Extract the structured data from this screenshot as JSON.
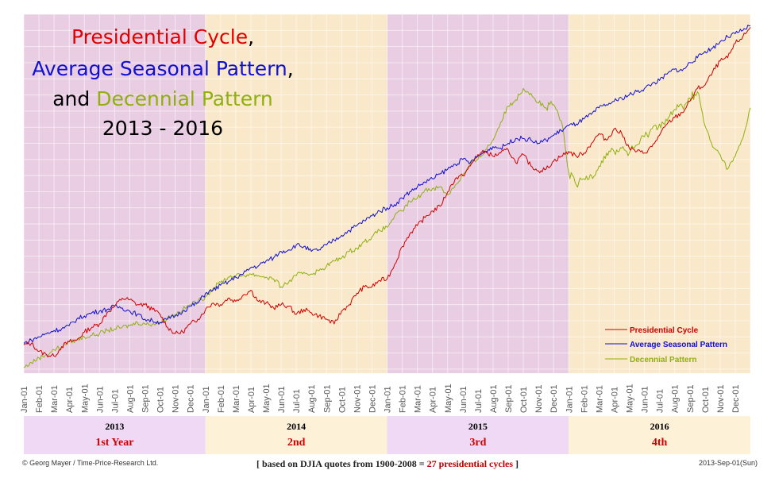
{
  "chart_data": {
    "type": "line",
    "title_lines": [
      [
        {
          "text": "Presidential ",
          "color": "#e00000"
        },
        {
          "text": "Cycle",
          "color": "#e00000"
        },
        {
          "text": ",",
          "color": "#000000"
        }
      ],
      [
        {
          "text": "Average Seasonal Pattern",
          "color": "#1010d0"
        },
        {
          "text": ",",
          "color": "#000000"
        }
      ],
      [
        {
          "text": "and ",
          "color": "#000000"
        },
        {
          "text": "Decennial Pattern",
          "color": "#90b010"
        }
      ],
      [
        {
          "text": "2013 - 2016",
          "color": "#000000"
        }
      ]
    ],
    "month_labels": [
      "Jan-01",
      "Feb-01",
      "Mar-01",
      "Apr-01",
      "May-01",
      "Jun-01",
      "Jul-01",
      "Aug-01",
      "Sep-01",
      "Oct-01",
      "Nov-01",
      "Dec-01"
    ],
    "years": [
      {
        "year": "2013",
        "label": "1st Year"
      },
      {
        "year": "2014",
        "label": "2nd"
      },
      {
        "year": "2015",
        "label": "3rd"
      },
      {
        "year": "2016",
        "label": "4th"
      }
    ],
    "x_unit": "months since Jan-01 2013",
    "series": [
      {
        "name": "Presidential Cycle",
        "color": "#d00000",
        "x": [
          0,
          0.5,
          1,
          1.5,
          2,
          2.5,
          3,
          3.5,
          4,
          4.5,
          5,
          5.5,
          6,
          6.5,
          7,
          7.5,
          8,
          8.5,
          9,
          9.5,
          10,
          10.5,
          11,
          11.5,
          12,
          12.5,
          13,
          13.5,
          14,
          14.5,
          15,
          15.5,
          16,
          16.5,
          17,
          17.5,
          18,
          18.5,
          19,
          19.5,
          20,
          20.5,
          21,
          21.5,
          22,
          22.5,
          23,
          23.5,
          24,
          24.5,
          25,
          25.5,
          26,
          26.5,
          27,
          27.5,
          28,
          28.5,
          29,
          29.5,
          30,
          30.5,
          31,
          31.5,
          32,
          32.5,
          33,
          33.5,
          34,
          34.5,
          35,
          35.5,
          36,
          36.5,
          37,
          37.5,
          38,
          38.5,
          39,
          39.5,
          40,
          40.5,
          41,
          41.5,
          42,
          42.5,
          43,
          43.5,
          44,
          44.5,
          45,
          45.5,
          46,
          46.5,
          47,
          47.5,
          48
        ],
        "y": [
          3.0,
          3.2,
          2.2,
          1.8,
          1.6,
          2.8,
          3.4,
          3.6,
          4.6,
          5.2,
          5.6,
          7.0,
          7.8,
          8.8,
          8.6,
          8.0,
          8.0,
          7.4,
          6.8,
          5.2,
          4.4,
          4.6,
          5.6,
          6.2,
          7.4,
          8.2,
          8.0,
          8.8,
          8.4,
          9.2,
          9.8,
          8.4,
          8.2,
          7.6,
          8.0,
          7.8,
          6.8,
          7.4,
          7.0,
          6.6,
          6.2,
          5.6,
          7.2,
          8.0,
          9.4,
          10.2,
          10.2,
          11.0,
          11.2,
          13.0,
          15.2,
          16.8,
          17.8,
          18.8,
          19.6,
          20.2,
          22.0,
          23.6,
          24.0,
          25.2,
          26.6,
          27.0,
          26.4,
          26.8,
          27.2,
          25.6,
          26.6,
          25.2,
          24.6,
          24.8,
          25.8,
          26.4,
          27.0,
          26.4,
          26.8,
          28.0,
          29.2,
          28.4,
          29.8,
          29.2,
          27.4,
          27.0,
          26.8,
          27.6,
          29.0,
          30.4,
          31.2,
          31.8,
          33.2,
          34.8,
          35.2,
          36.8,
          38.2,
          38.6,
          40.4,
          41.2,
          42.4
        ]
      },
      {
        "name": "Average Seasonal Pattern",
        "color": "#1010d0",
        "x": [
          0,
          0.5,
          1,
          1.5,
          2,
          2.5,
          3,
          3.5,
          4,
          4.5,
          5,
          5.5,
          6,
          6.5,
          7,
          7.5,
          8,
          8.5,
          9,
          9.5,
          10,
          10.5,
          11,
          11.5,
          12,
          12.5,
          13,
          13.5,
          14,
          14.5,
          15,
          15.5,
          16,
          16.5,
          17,
          17.5,
          18,
          18.5,
          19,
          19.5,
          20,
          20.5,
          21,
          21.5,
          22,
          22.5,
          23,
          23.5,
          24,
          24.5,
          25,
          25.5,
          26,
          26.5,
          27,
          27.5,
          28,
          28.5,
          29,
          29.5,
          30,
          30.5,
          31,
          31.5,
          32,
          32.5,
          33,
          33.5,
          34,
          34.5,
          35,
          35.5,
          36,
          36.5,
          37,
          37.5,
          38,
          38.5,
          39,
          39.5,
          40,
          40.5,
          41,
          41.5,
          42,
          42.5,
          43,
          43.5,
          44,
          44.5,
          45,
          45.5,
          46,
          46.5,
          47,
          47.5,
          48
        ],
        "y": [
          3.2,
          3.6,
          4.0,
          4.4,
          4.8,
          5.0,
          5.4,
          6.2,
          6.6,
          7.0,
          7.2,
          7.4,
          7.8,
          7.6,
          7.2,
          6.8,
          6.2,
          6.0,
          5.8,
          6.2,
          6.6,
          7.2,
          7.8,
          8.2,
          9.4,
          9.8,
          10.4,
          10.8,
          11.4,
          11.8,
          12.6,
          12.8,
          13.4,
          13.8,
          14.6,
          14.8,
          15.4,
          15.2,
          14.6,
          14.8,
          15.4,
          16.0,
          16.6,
          17.2,
          17.8,
          18.4,
          19.0,
          19.6,
          20.0,
          20.4,
          21.2,
          22.0,
          22.6,
          23.2,
          23.6,
          24.2,
          24.8,
          25.4,
          26.0,
          25.6,
          26.4,
          27.0,
          27.6,
          27.4,
          28.0,
          28.6,
          28.6,
          28.4,
          28.0,
          28.4,
          29.0,
          29.6,
          30.2,
          30.4,
          31.0,
          31.6,
          32.4,
          32.8,
          33.2,
          33.6,
          34.0,
          34.4,
          34.8,
          35.4,
          35.8,
          36.6,
          37.2,
          37.0,
          38.0,
          38.6,
          39.4,
          39.8,
          40.6,
          41.2,
          41.6,
          42.0,
          42.6
        ]
      },
      {
        "name": "Decennial Pattern",
        "color": "#90b010",
        "x": [
          0,
          0.5,
          1,
          1.5,
          2,
          2.5,
          3,
          3.5,
          4,
          4.5,
          5,
          5.5,
          6,
          6.5,
          7,
          7.5,
          8,
          8.5,
          9,
          9.5,
          10,
          10.5,
          11,
          11.5,
          12,
          12.5,
          13,
          13.5,
          14,
          14.5,
          15,
          15.5,
          16,
          16.5,
          17,
          17.5,
          18,
          18.5,
          19,
          19.5,
          20,
          20.5,
          21,
          21.5,
          22,
          22.5,
          23,
          23.5,
          24,
          24.5,
          25,
          25.5,
          26,
          26.5,
          27,
          27.5,
          28,
          28.5,
          29,
          29.5,
          30,
          30.5,
          31,
          31.5,
          32,
          32.5,
          33,
          33.5,
          34,
          34.5,
          35,
          35.5,
          36,
          36.5,
          37,
          37.5,
          38,
          38.5,
          39,
          39.5,
          40,
          40.5,
          41,
          41.5,
          42,
          42.5,
          43,
          43.5,
          44,
          44.5,
          45,
          45.5,
          46,
          46.5,
          47,
          47.5,
          48
        ],
        "y": [
          0.2,
          0.8,
          1.4,
          1.8,
          2.4,
          2.8,
          3.4,
          3.6,
          4.0,
          4.2,
          4.4,
          4.8,
          5.0,
          5.2,
          5.4,
          5.8,
          5.6,
          5.6,
          5.8,
          6.4,
          6.8,
          7.4,
          8.0,
          8.4,
          9.0,
          10.0,
          10.8,
          11.4,
          11.6,
          11.6,
          11.8,
          11.6,
          11.4,
          11.2,
          10.2,
          10.8,
          11.6,
          12.0,
          11.8,
          12.2,
          12.8,
          13.4,
          13.8,
          14.6,
          15.0,
          15.8,
          16.4,
          17.2,
          17.6,
          19.0,
          19.6,
          20.8,
          21.2,
          22.2,
          22.4,
          22.6,
          21.6,
          22.8,
          24.0,
          25.4,
          26.0,
          27.2,
          28.4,
          30.6,
          32.6,
          33.4,
          34.8,
          34.2,
          33.0,
          32.4,
          32.8,
          30.8,
          24.4,
          22.8,
          23.6,
          24.0,
          25.2,
          26.8,
          27.0,
          27.4,
          26.8,
          27.8,
          28.8,
          29.8,
          30.4,
          30.8,
          32.2,
          32.6,
          33.6,
          34.4,
          30.2,
          27.6,
          26.6,
          24.8,
          26.4,
          28.6,
          32.4
        ]
      }
    ],
    "ylim": [
      -0.5,
      44
    ],
    "grid": true,
    "legend_position": "bottom-right",
    "legend": [
      "Presidential Cycle",
      "Average Seasonal Pattern",
      "Decennial Pattern"
    ]
  },
  "footer": {
    "copyright": "Georg Mayer / Time-Price-Research Ltd.",
    "copyright_symbol": "©",
    "note_prefix": "[ based on DJIA quotes from 1900-2008 = ",
    "note_highlight": "27 presidential cycles",
    "note_suffix": " ]",
    "date": "2013-Sep-01(Sun)"
  },
  "colors": {
    "band_first_third": "#efd9f5",
    "band_second_fourth": "#fdf1d8",
    "plot_first": "#e9cde3",
    "plot_second": "#f9e8c9",
    "grid": "#ffffff"
  }
}
